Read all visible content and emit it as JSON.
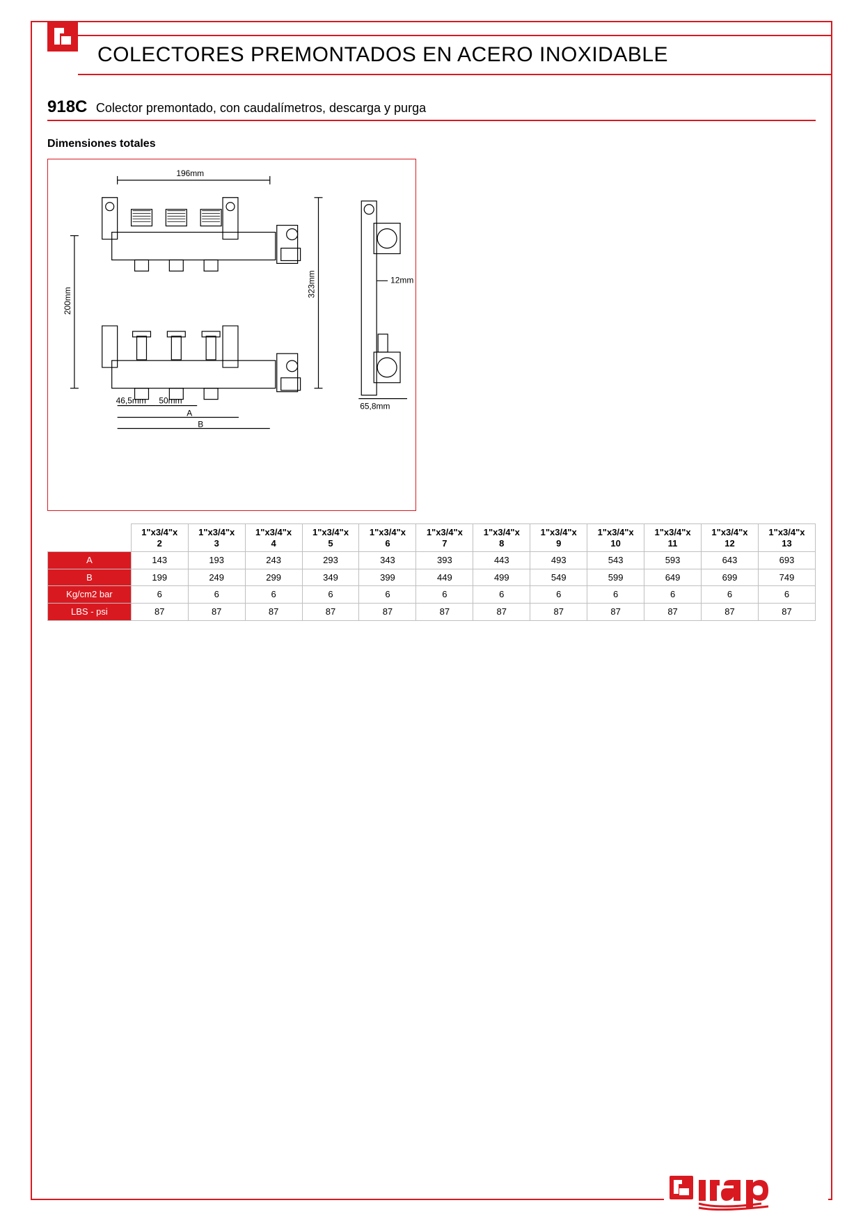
{
  "header": {
    "title": "COLECTORES PREMONTADOS EN ACERO INOXIDABLE"
  },
  "product": {
    "code": "918C",
    "description": "Colector premontado, con caudalímetros, descarga y purga"
  },
  "dimensions_section": {
    "heading": "Dimensiones totales",
    "labels": {
      "top_width": "196mm",
      "left_height": "200mm",
      "total_height": "323mm",
      "side_depth": "12mm",
      "side_width": "65,8mm",
      "offset_a": "46,5mm",
      "offset_b": "50mm",
      "dim_a": "A",
      "dim_b": "B"
    }
  },
  "table": {
    "columns": [
      "1\"x3/4\"x 2",
      "1\"x3/4\"x 3",
      "1\"x3/4\"x 4",
      "1\"x3/4\"x 5",
      "1\"x3/4\"x 6",
      "1\"x3/4\"x 7",
      "1\"x3/4\"x 8",
      "1\"x3/4\"x 9",
      "1\"x3/4\"x 10",
      "1\"x3/4\"x 11",
      "1\"x3/4\"x 12",
      "1\"x3/4\"x 13"
    ],
    "rows": [
      {
        "label": "A",
        "values": [
          "143",
          "193",
          "243",
          "293",
          "343",
          "393",
          "443",
          "493",
          "543",
          "593",
          "643",
          "693"
        ]
      },
      {
        "label": "B",
        "values": [
          "199",
          "249",
          "299",
          "349",
          "399",
          "449",
          "499",
          "549",
          "599",
          "649",
          "699",
          "749"
        ]
      },
      {
        "label": "Kg/cm2 bar",
        "values": [
          "6",
          "6",
          "6",
          "6",
          "6",
          "6",
          "6",
          "6",
          "6",
          "6",
          "6",
          "6"
        ]
      },
      {
        "label": "LBS - psi",
        "values": [
          "87",
          "87",
          "87",
          "87",
          "87",
          "87",
          "87",
          "87",
          "87",
          "87",
          "87",
          "87"
        ]
      }
    ]
  },
  "brand": "itap",
  "colors": {
    "accent": "#d91920",
    "border_grey": "#bfbfbf"
  }
}
